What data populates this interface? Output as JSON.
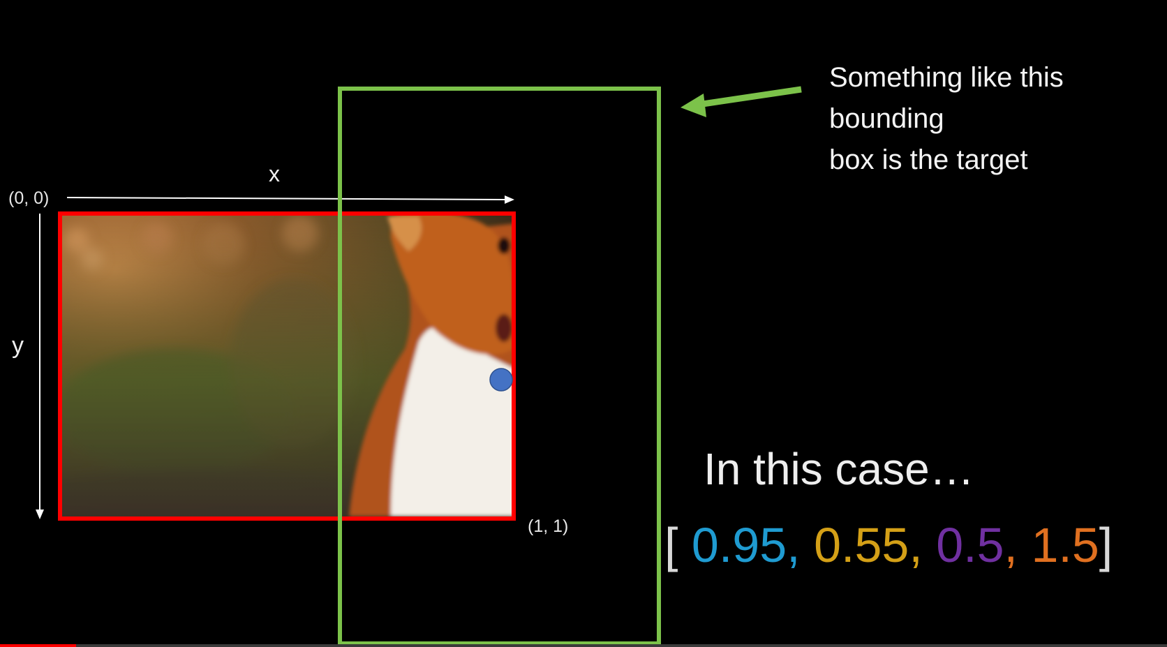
{
  "diagram": {
    "origin_label": "(0, 0)",
    "corner_label": "(1, 1)",
    "x_axis_label": "x",
    "y_axis_label": "y",
    "image_frame_color": "#ff0000",
    "target_box_color": "#7cc24a",
    "arrow_color": "#7cc24a",
    "center_point_color": "#4472c4"
  },
  "annotation": {
    "lines": [
      "Something like this",
      "bounding",
      "box is the target"
    ]
  },
  "case_label": "In this case…",
  "target_vector": {
    "open": "[",
    "close": "]",
    "separator": ",",
    "values": [
      {
        "text": "0.95",
        "color": "#1f9bd1"
      },
      {
        "text": "0.55",
        "color": "#d4a017"
      },
      {
        "text": "0.5",
        "color": "#7030a0"
      },
      {
        "text": "1.5",
        "color": "#e07020"
      }
    ],
    "separator_colors": [
      "#1f9bd1",
      "#d4a017",
      "#e07020"
    ]
  },
  "video": {
    "progress_fraction": 0.065
  }
}
